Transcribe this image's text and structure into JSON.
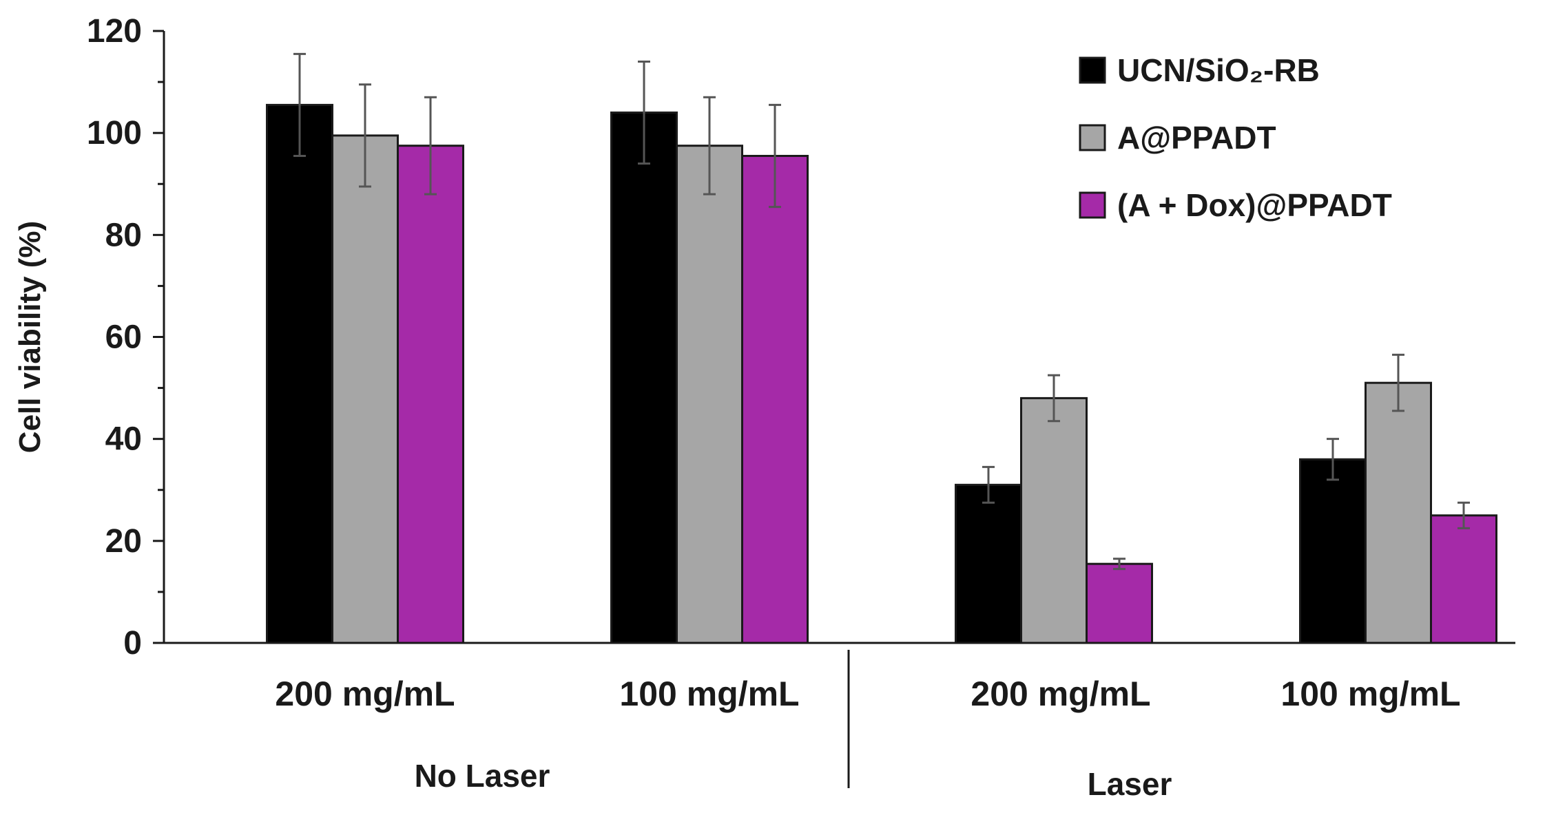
{
  "chart_data": {
    "type": "bar",
    "title": "",
    "xlabel": "",
    "ylabel": "Cell viability (%)",
    "ylim": [
      0,
      120
    ],
    "yticks": [
      0,
      20,
      40,
      60,
      80,
      100,
      120
    ],
    "grid": false,
    "legend_position": "top-right",
    "categories": [
      "200 mg/mL",
      "100 mg/mL",
      "200 mg/mL",
      "100 mg/mL"
    ],
    "groups": [
      {
        "label": "No Laser",
        "categories": [
          0,
          1
        ]
      },
      {
        "label": "Laser",
        "categories": [
          2,
          3
        ]
      }
    ],
    "series": [
      {
        "name": "UCN/SiO₂-RB",
        "color": "#000000",
        "values": [
          105.5,
          104,
          31,
          36
        ],
        "errors": [
          10,
          10,
          3.5,
          4
        ]
      },
      {
        "name": "A@PPADT",
        "color": "#a6a6a6",
        "values": [
          99.5,
          97.5,
          48,
          51
        ],
        "errors": [
          10,
          9.5,
          4.5,
          5.5
        ]
      },
      {
        "name": "(A + Dox)@PPADT",
        "color": "#a52aa8",
        "values": [
          97.5,
          95.5,
          15.5,
          25
        ],
        "errors": [
          9.5,
          10,
          1,
          2.5
        ]
      }
    ]
  }
}
